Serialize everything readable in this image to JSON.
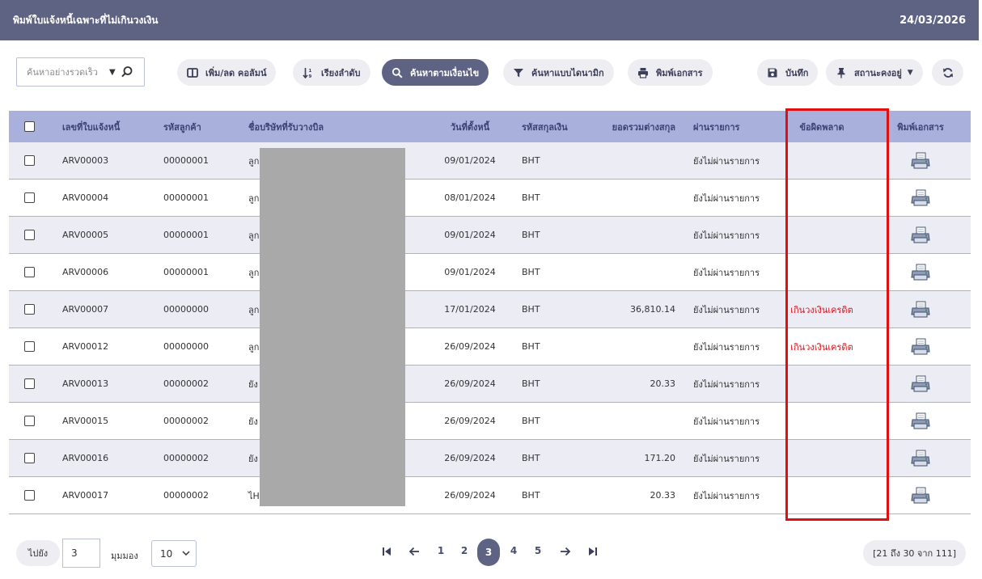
{
  "header": {
    "title": "พิมพ์ใบแจ้งหนี้เฉพาะที่ไม่เกินวงเงิน",
    "date": "24/03/2026"
  },
  "toolbar": {
    "search_placeholder": "ค้นหาอย่างรวดเร็ว",
    "columns_label": "เพิ่ม/ลด คอลัมน์",
    "sort_label": "เรียงลำดับ",
    "condition_search_label": "ค้นหาตามเงื่อนไข",
    "dynamic_search_label": "ค้นหาแบบไดนามิก",
    "print_docs_label": "พิมพ์เอกสาร",
    "save_label": "บันทึก",
    "pin_status_label": "สถานะคงอยู่"
  },
  "columns": {
    "doc_no": "เลขที่ใบแจ้งหนี้",
    "customer_code": "รหัสลูกค้า",
    "billing_company": "ชื่อบริษัทที่รับวางบิล",
    "due_date": "วันที่ตั้งหนี้",
    "currency": "รหัสสกุลเงิน",
    "foreign_total": "ยอดรวมต่างสกุล",
    "posted": "ผ่านรายการ",
    "error": "ข้อผิดพลาด",
    "print": "พิมพ์เอกสาร"
  },
  "rows": [
    {
      "doc_no": "ARV00003",
      "customer_code": "00000001",
      "company": "ลูก",
      "date": "09/01/2024",
      "currency": "BHT",
      "amount": "",
      "posted": "ยังไม่ผ่านรายการ",
      "error": ""
    },
    {
      "doc_no": "ARV00004",
      "customer_code": "00000001",
      "company": "ลูก",
      "date": "08/01/2024",
      "currency": "BHT",
      "amount": "",
      "posted": "ยังไม่ผ่านรายการ",
      "error": ""
    },
    {
      "doc_no": "ARV00005",
      "customer_code": "00000001",
      "company": "ลูก",
      "date": "09/01/2024",
      "currency": "BHT",
      "amount": "",
      "posted": "ยังไม่ผ่านรายการ",
      "error": ""
    },
    {
      "doc_no": "ARV00006",
      "customer_code": "00000001",
      "company": "ลูก",
      "date": "09/01/2024",
      "currency": "BHT",
      "amount": "",
      "posted": "ยังไม่ผ่านรายการ",
      "error": ""
    },
    {
      "doc_no": "ARV00007",
      "customer_code": "00000000",
      "company": "ลูก",
      "date": "17/01/2024",
      "currency": "BHT",
      "amount": "36,810.14",
      "posted": "ยังไม่ผ่านรายการ",
      "error": "เกินวงเงินเครดิต"
    },
    {
      "doc_no": "ARV00012",
      "customer_code": "00000000",
      "company": "ลูก",
      "date": "26/09/2024",
      "currency": "BHT",
      "amount": "",
      "posted": "ยังไม่ผ่านรายการ",
      "error": "เกินวงเงินเครดิต"
    },
    {
      "doc_no": "ARV00013",
      "customer_code": "00000002",
      "company": "ยัง",
      "date": "26/09/2024",
      "currency": "BHT",
      "amount": "20.33",
      "posted": "ยังไม่ผ่านรายการ",
      "error": ""
    },
    {
      "doc_no": "ARV00015",
      "customer_code": "00000002",
      "company": "ยัง",
      "date": "26/09/2024",
      "currency": "BHT",
      "amount": "",
      "posted": "ยังไม่ผ่านรายการ",
      "error": ""
    },
    {
      "doc_no": "ARV00016",
      "customer_code": "00000002",
      "company": "ยัง",
      "date": "26/09/2024",
      "currency": "BHT",
      "amount": "171.20",
      "posted": "ยังไม่ผ่านรายการ",
      "error": ""
    },
    {
      "doc_no": "ARV00017",
      "customer_code": "00000002",
      "company": "ไHo",
      "date": "26/09/2024",
      "currency": "BHT",
      "amount": "20.33",
      "posted": "ยังไม่ผ่านรายการ",
      "error": ""
    }
  ],
  "footer": {
    "goto_label": "ไปยัง",
    "page_value": "3",
    "view_label": "มุมมอง",
    "page_size": "10",
    "pages": [
      "1",
      "2",
      "3",
      "4",
      "5"
    ],
    "range_text": "[21 ถึง 30 จาก 111]"
  },
  "colors": {
    "header_bg": "#5e6384",
    "grid_head_bg": "#a9b0dc",
    "row_alt_bg": "#ececf5",
    "error_text": "#e0101b",
    "highlight_border": "#e01010"
  }
}
